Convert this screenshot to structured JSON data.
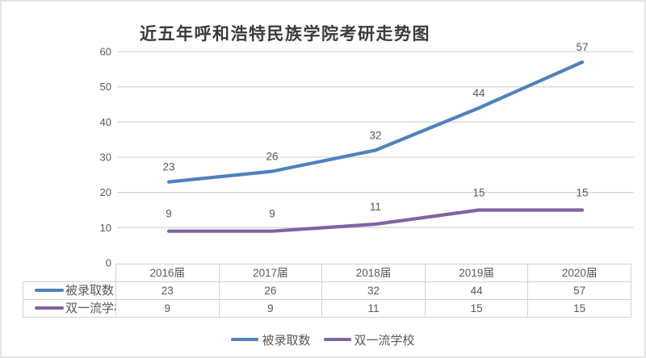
{
  "chart_data": {
    "type": "line",
    "title": "近五年呼和浩特民族学院考研走势图",
    "categories": [
      "2016届",
      "2017届",
      "2018届",
      "2019届",
      "2020届"
    ],
    "series": [
      {
        "name": "被录取数",
        "values": [
          23,
          26,
          32,
          44,
          57
        ],
        "color": "#4F81BD"
      },
      {
        "name": "双一流学校",
        "values": [
          9,
          9,
          11,
          15,
          15
        ],
        "color": "#8064A2"
      }
    ],
    "ylim": [
      0,
      60
    ],
    "yticks": [
      0,
      10,
      20,
      30,
      40,
      50,
      60
    ],
    "grid": "horizontal",
    "legend_position": "bottom",
    "data_labels": true,
    "colors": {
      "gridline": "#D9D9D9",
      "axis_text": "#595959",
      "title_text": "#3A3A3A",
      "table_border": "#D2D2D2",
      "table_text": "#595959",
      "frame_border": "#E4E4E4"
    }
  }
}
